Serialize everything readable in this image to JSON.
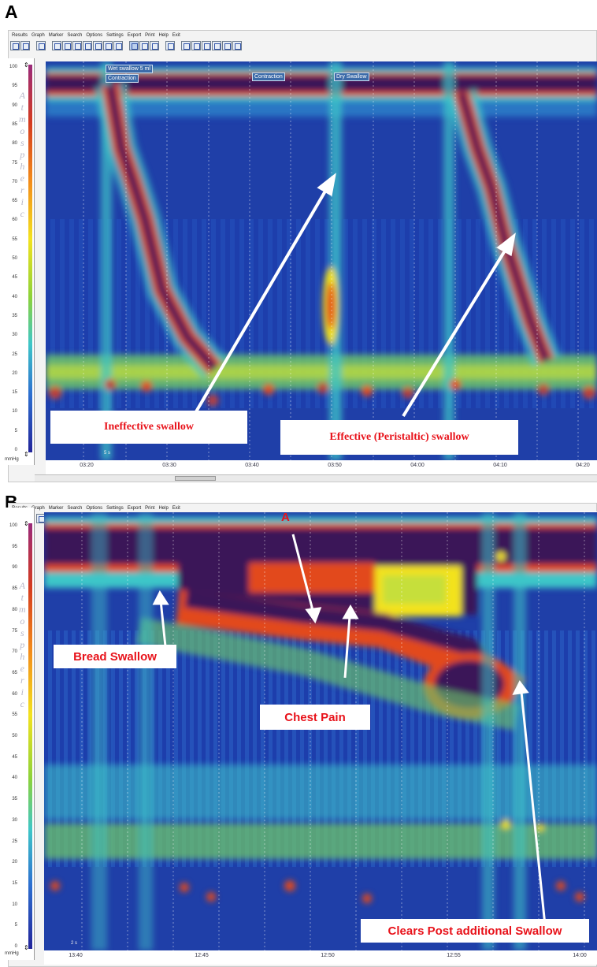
{
  "panel_a": {
    "letter": "A",
    "menu": [
      "Results",
      "Graph",
      "Marker",
      "Search",
      "Options",
      "Settings",
      "Export",
      "Print",
      "Help",
      "Exit"
    ],
    "y_ticks": [
      "100",
      "95",
      "90",
      "85",
      "80",
      "75",
      "70",
      "65",
      "60",
      "55",
      "50",
      "45",
      "40",
      "35",
      "30",
      "25",
      "20",
      "15",
      "10",
      "5",
      "0"
    ],
    "y_word": [
      "A",
      "t",
      "m",
      "o",
      "s",
      "p",
      "h",
      "e",
      "r",
      "i",
      "c"
    ],
    "unit": "mmHg",
    "x_ticks": [
      "03:20",
      "03:30",
      "03:40",
      "03:50",
      "04:00",
      "04:10",
      "04:20"
    ],
    "markers": [
      "Wet swallow 5 ml",
      "Contraction",
      "Contraction",
      "Dry Swallow"
    ],
    "scale_note": "5 s",
    "annotations": {
      "ineffective": "Ineffective swallow",
      "effective": "Effective (Peristaltic) swallow"
    }
  },
  "panel_b": {
    "letter": "B",
    "menu": [
      "Results",
      "Graph",
      "Marker",
      "Search",
      "Options",
      "Settings",
      "Export",
      "Print",
      "Help",
      "Exit"
    ],
    "y_ticks": [
      "100",
      "95",
      "90",
      "85",
      "80",
      "75",
      "70",
      "65",
      "60",
      "55",
      "50",
      "45",
      "40",
      "35",
      "30",
      "25",
      "20",
      "15",
      "10",
      "5",
      "0"
    ],
    "y_word": [
      "A",
      "t",
      "m",
      "o",
      "s",
      "p",
      "h",
      "e",
      "r",
      "i",
      "c"
    ],
    "unit": "mmHg",
    "x_ticks": [
      "13:40",
      "12:45",
      "12:50",
      "12:55",
      "14:00"
    ],
    "scale_note": "2 s",
    "annotations": {
      "a_letter": "A",
      "bread": "Bread Swallow",
      "chest": "Chest Pain",
      "clears": "Clears Post additional Swallow"
    }
  },
  "colors": {
    "annotation_red": "#e8121a",
    "plot_blue": "#1f3fa8",
    "hot_purple": "#3b1258"
  }
}
